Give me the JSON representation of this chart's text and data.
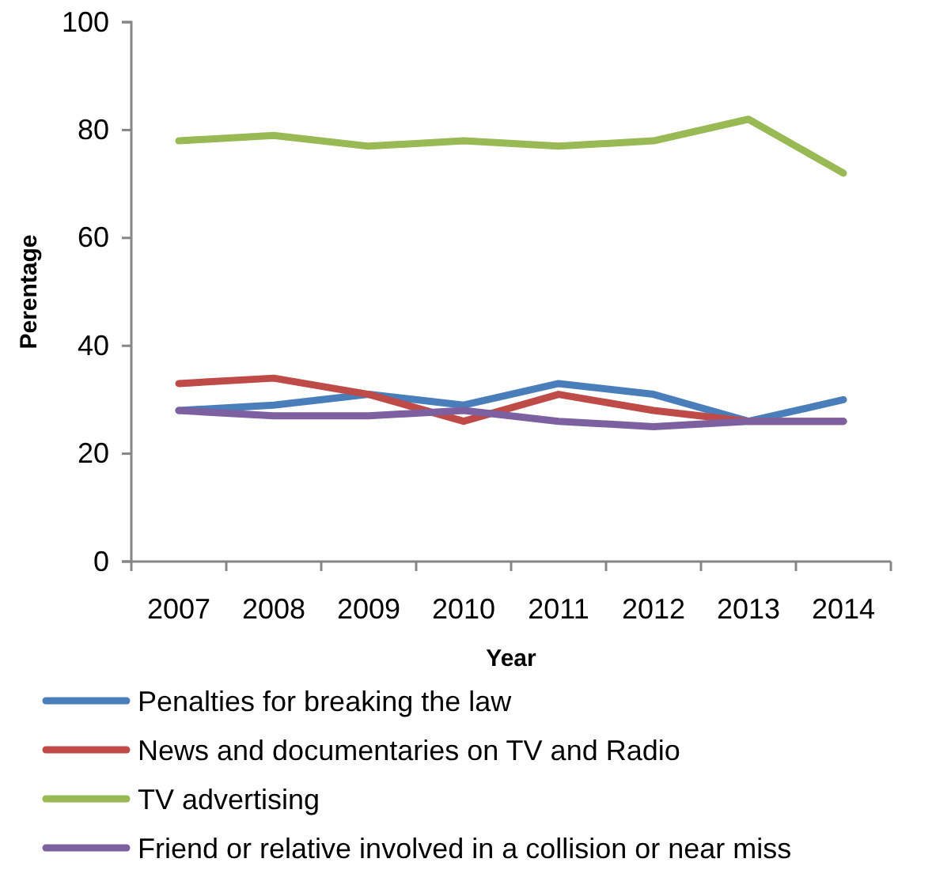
{
  "chart_data": {
    "type": "line",
    "xlabel": "Year",
    "ylabel": "Perentage",
    "categories": [
      "2007",
      "2008",
      "2009",
      "2010",
      "2011",
      "2012",
      "2013",
      "2014"
    ],
    "series": [
      {
        "name": "Penalties for breaking the law",
        "color": "#4a7ebb",
        "values": [
          28,
          29,
          31,
          29,
          33,
          31,
          26,
          30
        ]
      },
      {
        "name": "News and documentaries on TV and Radio",
        "color": "#be4b48",
        "values": [
          33,
          34,
          31,
          26,
          31,
          28,
          26,
          26
        ]
      },
      {
        "name": "TV advertising",
        "color": "#98b954",
        "values": [
          78,
          79,
          77,
          78,
          77,
          78,
          82,
          72
        ]
      },
      {
        "name": "Friend or relative involved in a collision or near miss",
        "color": "#7d60a0",
        "values": [
          28,
          27,
          27,
          28,
          26,
          25,
          26,
          26
        ]
      }
    ],
    "ylim": [
      0,
      100
    ],
    "yticks": [
      0,
      20,
      40,
      60,
      80,
      100
    ],
    "grid": false,
    "legend": "bottom",
    "marker": "none",
    "line_style": "solid"
  }
}
